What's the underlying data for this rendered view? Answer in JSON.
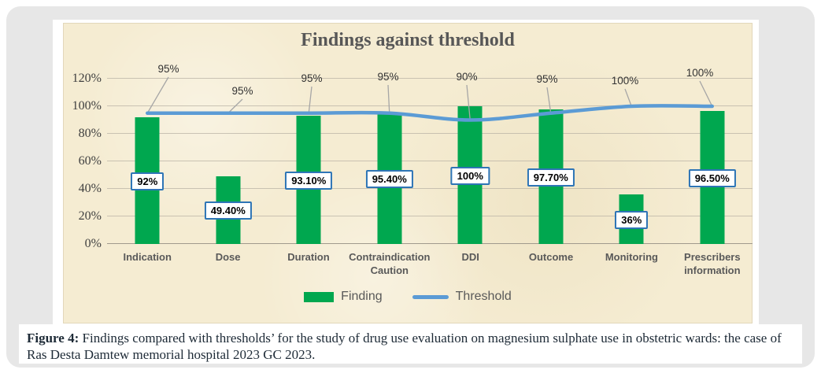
{
  "chart_data": {
    "type": "bar",
    "title": "Findings against threshold",
    "xlabel": "",
    "ylabel": "",
    "ylim": [
      0,
      120
    ],
    "ytick_step": 20,
    "yticks": [
      "0%",
      "20%",
      "40%",
      "60%",
      "80%",
      "100%",
      "120%"
    ],
    "grid": true,
    "legend_position": "bottom",
    "categories": [
      "Indication",
      "Dose",
      "Duration",
      "Contraindication\nCaution",
      "DDI",
      "Outcome",
      "Monitoring",
      "Prescribers\ninformation"
    ],
    "series": [
      {
        "name": "Finding",
        "kind": "bar",
        "color": "#00a74f",
        "values": [
          92,
          49.4,
          93.1,
          95.4,
          100,
          97.7,
          36,
          96.5
        ],
        "labels": [
          "92%",
          "49.40%",
          "93.10%",
          "95.40%",
          "100%",
          "97.70%",
          "36%",
          "96.50%"
        ]
      },
      {
        "name": "Threshold",
        "kind": "line",
        "color": "#5b9bd5",
        "values": [
          95,
          95,
          95,
          95,
          90,
          95,
          100,
          100
        ],
        "labels": [
          "95%",
          "95%",
          "95%",
          "95%",
          "90%",
          "95%",
          "100%",
          "100%"
        ]
      }
    ]
  },
  "figure": {
    "caption_prefix": "Figure 4:",
    "caption_text": " Findings compared with thresholds’ for the study of drug use evaluation on magnesium sulphate use in obstetric wards: the case of Ras Desta Damtew memorial hospital 2023 GC 2023."
  },
  "colors": {
    "card_bg": "#e7e7e7",
    "plot_bg": "#f5ecd2",
    "gridline": "#b9b3a6",
    "bar_label_border": "#2e75b6",
    "leader_line": "#a6a6a6",
    "title_text": "#575757",
    "axis_text": "#595959"
  }
}
